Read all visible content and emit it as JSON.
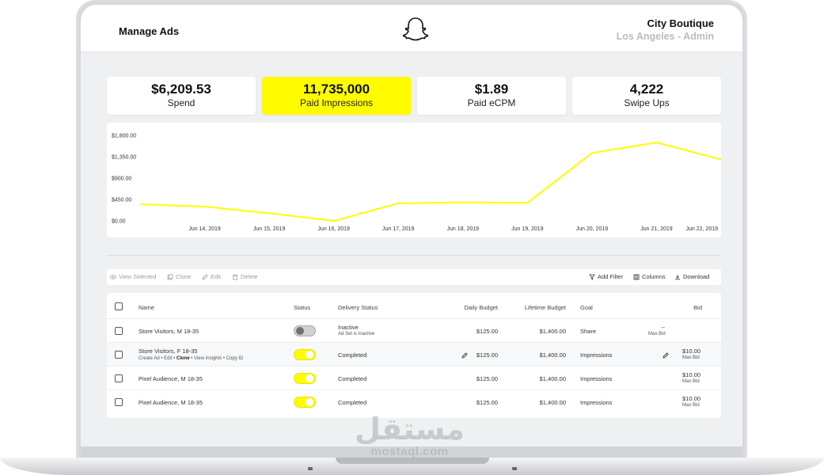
{
  "header": {
    "title": "Manage Ads",
    "logo_icon": "snapchat-ghost-icon",
    "account_name": "City Boutique",
    "account_sub": "Los Angeles - Admin"
  },
  "stats": [
    {
      "value": "$6,209.53",
      "label": "Spend",
      "active": false
    },
    {
      "value": "11,735,000",
      "label": "Paid Impressions",
      "active": true
    },
    {
      "value": "$1.89",
      "label": "Paid eCPM",
      "active": false
    },
    {
      "value": "4,222",
      "label": "Swipe Ups",
      "active": false
    }
  ],
  "colors": {
    "accent": "#fffc00",
    "line": "#fffc00"
  },
  "chart_data": {
    "type": "line",
    "title": "",
    "xlabel": "",
    "ylabel": "",
    "y_ticks": [
      "$1,800.00",
      "$1,350.00",
      "$900.00",
      "$450.00",
      "$0.00"
    ],
    "x_ticks": [
      "Jun 14, 2019",
      "Jun 15, 2019",
      "Jun 16, 2019",
      "Jun 17, 2019",
      "Jun 18, 2019",
      "Jun 19, 2019",
      "Jun 20, 2019",
      "Jun 21, 2019",
      "Jun 22, 2019"
    ],
    "ylim": [
      0,
      1800
    ],
    "grid": false,
    "series": [
      {
        "x": [
          "Jun 13, 2019",
          "Jun 14, 2019",
          "Jun 15, 2019",
          "Jun 16, 2019",
          "Jun 17, 2019",
          "Jun 18, 2019",
          "Jun 19, 2019",
          "Jun 20, 2019",
          "Jun 21, 2019",
          "Jun 22, 2019"
        ],
        "values": [
          350,
          300,
          160,
          0,
          370,
          390,
          380,
          1430,
          1650,
          1290
        ]
      }
    ]
  },
  "toolbar": {
    "left": [
      {
        "label": "View Selected",
        "icon": "eye-icon"
      },
      {
        "label": "Clone",
        "icon": "copy-icon"
      },
      {
        "label": "Edit",
        "icon": "pencil-icon"
      },
      {
        "label": "Delete",
        "icon": "trash-icon"
      }
    ],
    "right": [
      {
        "label": "Add Filter",
        "icon": "filter-icon"
      },
      {
        "label": "Columns",
        "icon": "columns-icon"
      },
      {
        "label": "Download",
        "icon": "download-icon"
      }
    ]
  },
  "table": {
    "headers": {
      "name": "Name",
      "status": "Status",
      "delivery": "Delivery Status",
      "daily": "Daily Budget",
      "lifetime": "Lifetime Budget",
      "goal": "Goal",
      "bid": "Bid"
    },
    "rows": [
      {
        "name": "Store Visitors, M 18-35",
        "on": false,
        "delivery": "Inactive",
        "delivery_sub": "Ad Set is Inactive",
        "daily": "$125.00",
        "lifetime": "$1,400.00",
        "goal": "Share",
        "bid": "--",
        "bid_sub": "Max Bid"
      },
      {
        "name": "Store Visitors, F 18-35",
        "on": true,
        "delivery": "Completed",
        "delivery_sub": "",
        "daily": "$125.00",
        "lifetime": "$1,400.00",
        "goal": "Impressions",
        "bid": "$10.00",
        "bid_sub": "Max Bid",
        "actions": [
          "Create Ad",
          "Edit",
          "Clone",
          "View Insights",
          "Copy ID"
        ]
      },
      {
        "name": "Pixel Audience, M 18-35",
        "on": true,
        "delivery": "Completed",
        "delivery_sub": "",
        "daily": "$125.00",
        "lifetime": "$1,400.00",
        "goal": "Impressions",
        "bid": "$10.00",
        "bid_sub": "Max Bid"
      },
      {
        "name": "Pixel Audience, M 18-35",
        "on": true,
        "delivery": "Completed",
        "delivery_sub": "",
        "daily": "$125.00",
        "lifetime": "$1,400.00",
        "goal": "Impressions",
        "bid": "$10.00",
        "bid_sub": "Max Bid"
      }
    ]
  },
  "watermark": {
    "arabic": "مستقل",
    "latin": "mostaql.com"
  }
}
